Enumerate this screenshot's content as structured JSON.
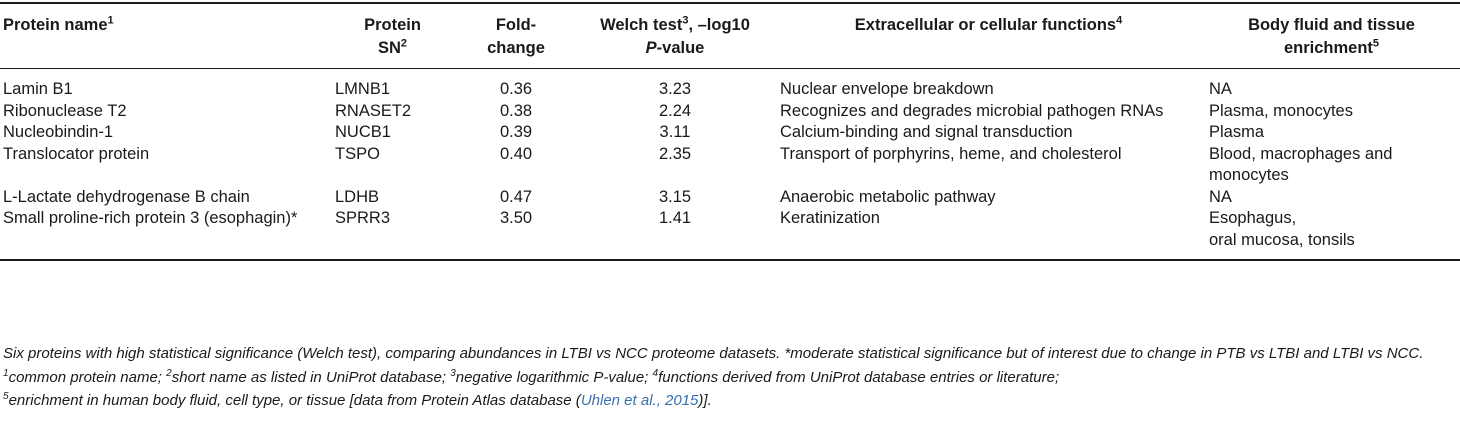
{
  "table": {
    "headers": {
      "name": "Protein name",
      "name_sup": "1",
      "sn_line1": "Protein",
      "sn_line2": "SN",
      "sn_sup": "2",
      "fold_line1": "Fold-",
      "fold_line2": "change",
      "welch_line1": "Welch test",
      "welch_sup": "3",
      "welch_line1_tail": ", –log10",
      "welch_line2": "P",
      "welch_line2_tail": "-value",
      "func": "Extracellular or cellular functions",
      "func_sup": "4",
      "body_line1": "Body fluid and tissue",
      "body_line2": "enrichment",
      "body_sup": "5"
    },
    "rows": [
      {
        "name": "Lamin B1",
        "sn": "LMNB1",
        "fold": "0.36",
        "welch": "3.23",
        "func": "Nuclear envelope breakdown",
        "body": "NA"
      },
      {
        "name": "Ribonuclease T2",
        "sn": "RNASET2",
        "fold": "0.38",
        "welch": "2.24",
        "func": "Recognizes and degrades microbial pathogen RNAs",
        "body": "Plasma, monocytes"
      },
      {
        "name": "Nucleobindin-1",
        "sn": "NUCB1",
        "fold": "0.39",
        "welch": "3.11",
        "func": "Calcium-binding and signal transduction",
        "body": "Plasma"
      },
      {
        "name": "Translocator protein",
        "sn": "TSPO",
        "fold": "0.40",
        "welch": "2.35",
        "func": "Transport of porphyrins, heme, and cholesterol",
        "body": "Blood, macrophages and monocytes"
      },
      {
        "name": "L-Lactate dehydrogenase B chain",
        "sn": "LDHB",
        "fold": "0.47",
        "welch": "3.15",
        "func": "Anaerobic metabolic pathway",
        "body": "NA"
      },
      {
        "name": "Small proline-rich protein 3 (esophagin)*",
        "sn": "SPRR3",
        "fold": "3.50",
        "welch": "1.41",
        "func": "Keratinization",
        "body_line1": "Esophagus,",
        "body_line2": "oral mucosa, tonsils"
      }
    ]
  },
  "caption": {
    "main": "Six proteins with high statistical significance (Welch test), comparing abundances in LTBI vs NCC proteome datasets. *moderate statistical significance but of interest due to change in PTB vs LTBI and LTBI vs NCC. ",
    "s1": "1",
    "f1": "common protein name; ",
    "s2": "2",
    "f2": "short name as listed in UniProt database; ",
    "s3": "3",
    "f3": "negative logarithmic P-value; ",
    "s4": "4",
    "f4": "functions derived from UniProt database entries or literature; ",
    "s5": "5",
    "f5": "enrichment in human body fluid, cell type, or tissue [data from Protein Atlas database (",
    "cite": "Uhlen et al., 2015",
    "f5_end": ")]."
  }
}
